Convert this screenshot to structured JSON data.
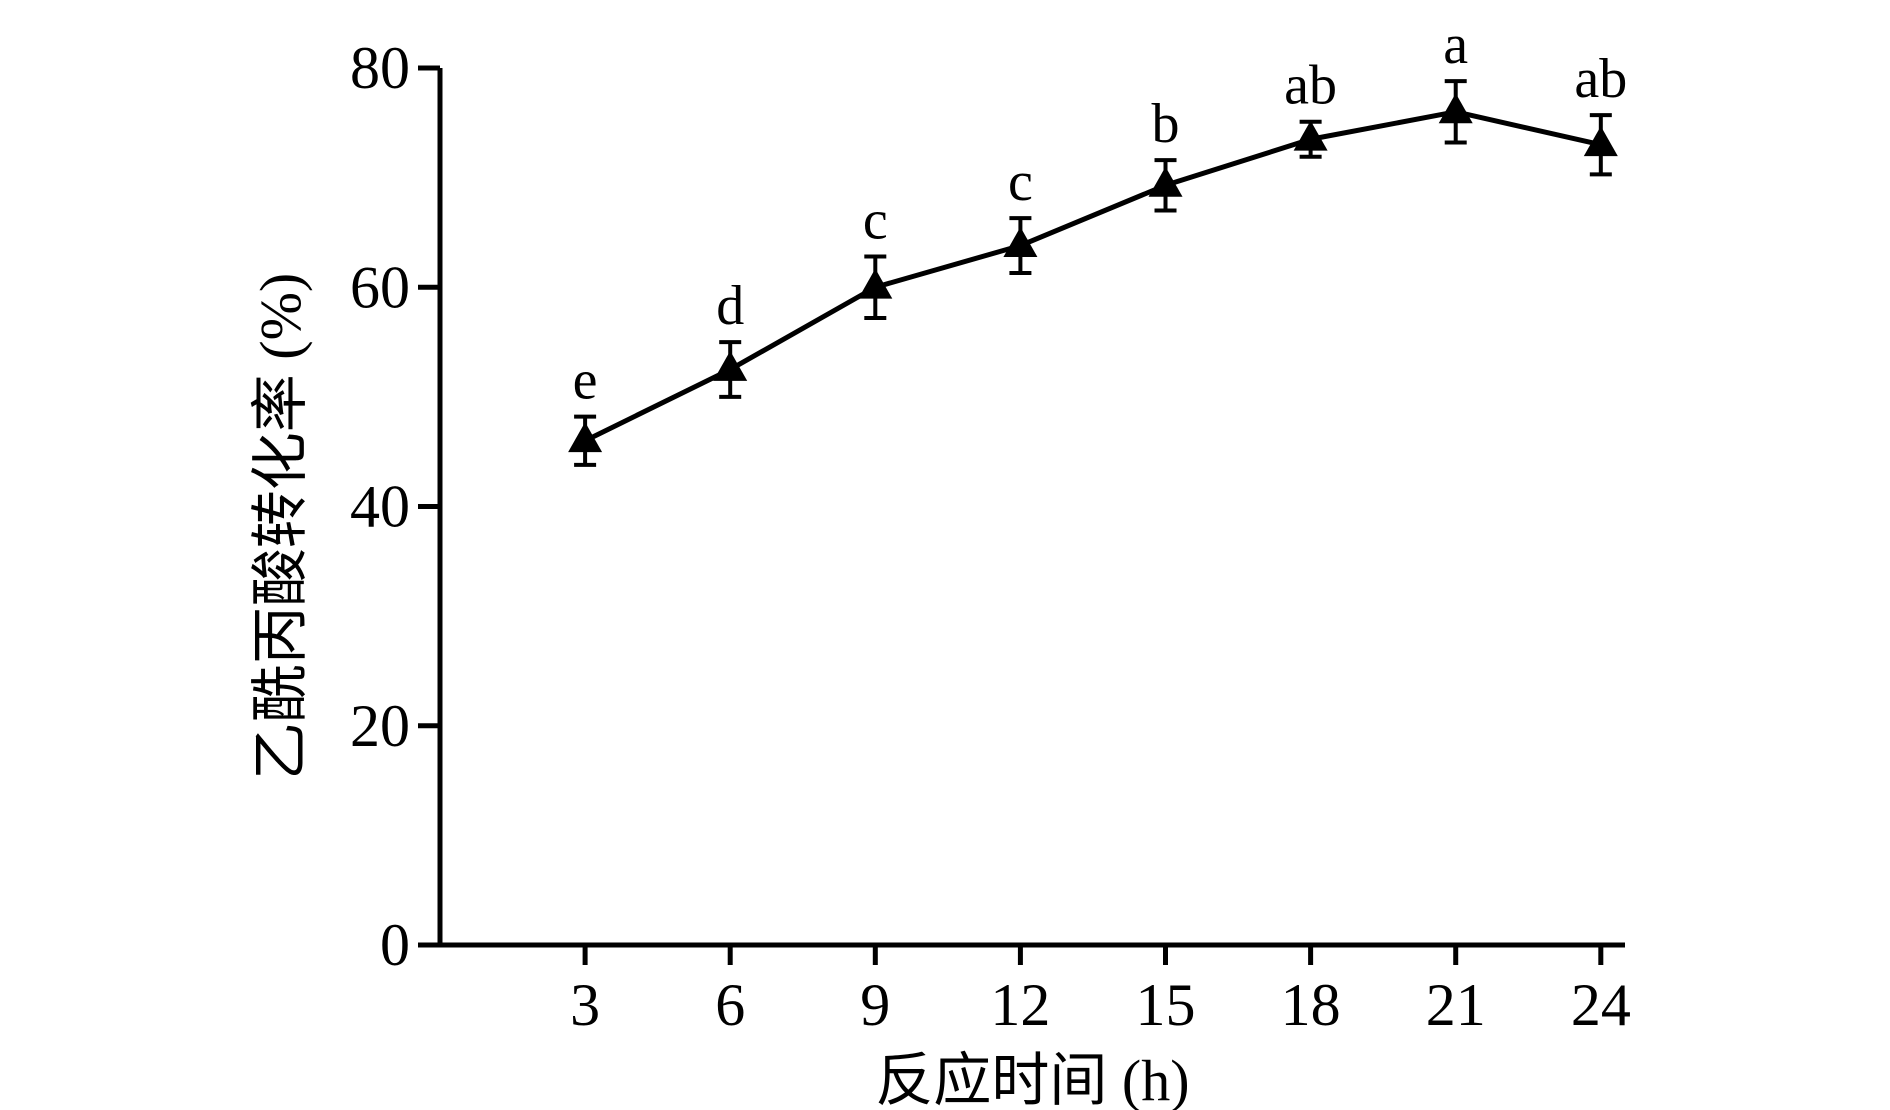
{
  "chart_data": {
    "type": "line",
    "title": "",
    "xlabel": "反应时间 (h)",
    "ylabel": "乙酰丙酸转化率 (%)",
    "x": [
      3,
      6,
      9,
      12,
      15,
      18,
      21,
      24
    ],
    "xticks": [
      "3",
      "6",
      "9",
      "12",
      "15",
      "18",
      "21",
      "24"
    ],
    "ylim": [
      0,
      80
    ],
    "yticks": [
      "0",
      "20",
      "40",
      "60",
      "80"
    ],
    "series": [
      {
        "marker": "triangle",
        "color": "#000000",
        "values": [
          46.0,
          52.5,
          60.0,
          63.8,
          69.3,
          73.5,
          76.0,
          73.0
        ],
        "errors": [
          2.2,
          2.5,
          2.8,
          2.5,
          2.3,
          1.6,
          2.8,
          2.7
        ],
        "significance": [
          "e",
          "d",
          "c",
          "c",
          "b",
          "ab",
          "a",
          "ab"
        ]
      }
    ],
    "grid": false,
    "legend": "none"
  }
}
